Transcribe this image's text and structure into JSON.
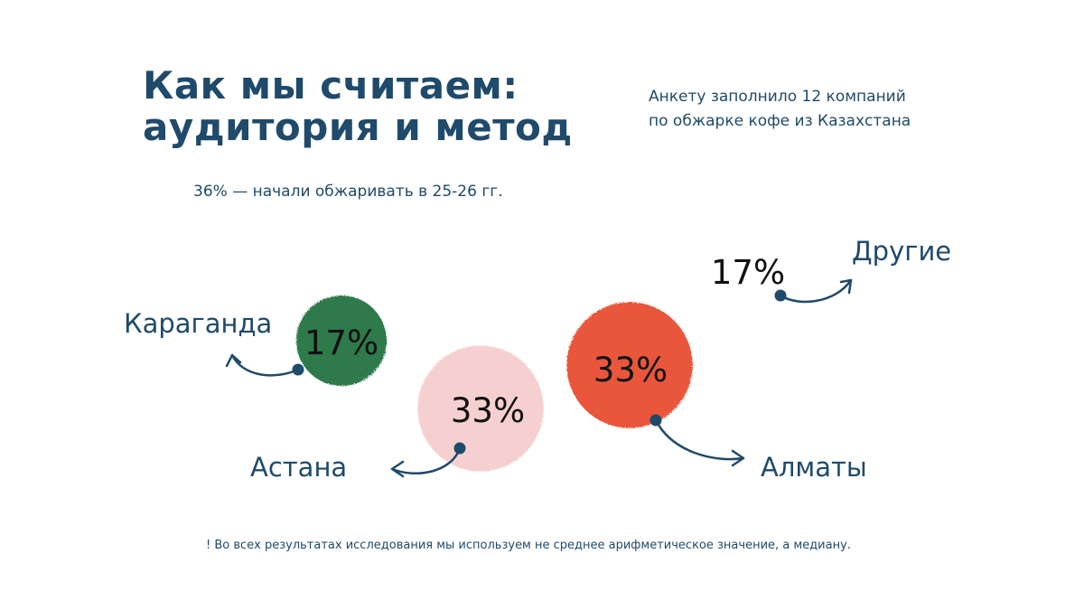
{
  "header": {
    "title_line1": "Как мы считаем:",
    "title_line2": "аудитория и метод",
    "subtitle_line1": "Анкету заполнило 12 компаний",
    "subtitle_line2": "по обжарке кофе из Казахстана",
    "started_note": "36% — начали обжаривать в 25-26 гг."
  },
  "footnote": "! Во всех результатах исследования мы используем не среднее арифметическое значение, а медиану.",
  "chart_data": {
    "type": "bubble",
    "unit": "%",
    "points": [
      {
        "name": "Караганда",
        "value": 17,
        "label": "17%",
        "color": "#2e7a4c"
      },
      {
        "name": "Астана",
        "value": 33,
        "label": "33%",
        "color": "#f6d0d0"
      },
      {
        "name": "Алматы",
        "value": 33,
        "label": "33%",
        "color": "#e9573a"
      },
      {
        "name": "Другие",
        "value": 17,
        "label": "17%",
        "color": null
      }
    ],
    "accent_color": "#1f4a6b"
  }
}
